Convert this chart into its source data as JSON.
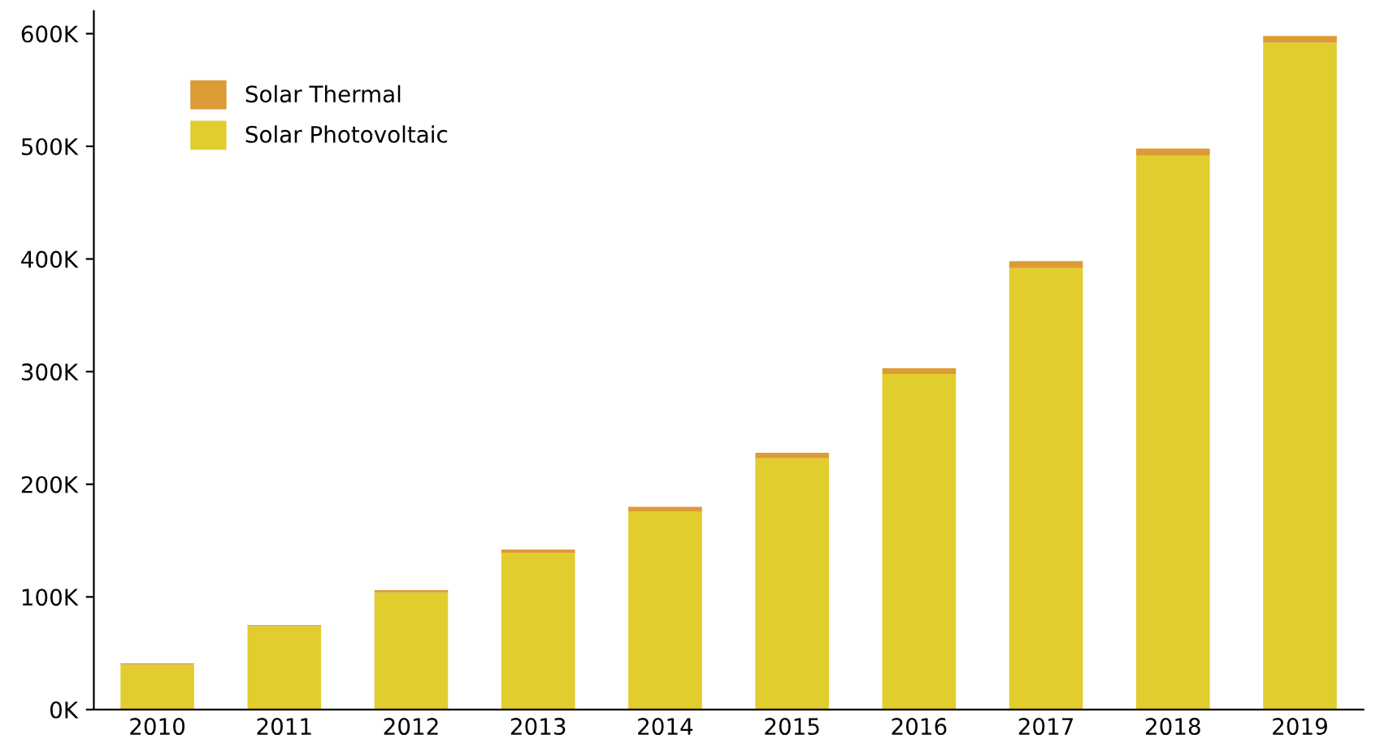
{
  "chart_data": {
    "type": "bar",
    "stacked": true,
    "categories": [
      "2010",
      "2011",
      "2012",
      "2013",
      "2014",
      "2015",
      "2016",
      "2017",
      "2018",
      "2019"
    ],
    "series": [
      {
        "name": "Solar Photovoltaic",
        "color": "#e2cd2f",
        "values": [
          40,
          74,
          104,
          139,
          176,
          223,
          298,
          392,
          492,
          592
        ]
      },
      {
        "name": "Solar Thermal",
        "color": "#dc9b35",
        "values": [
          1,
          1,
          2,
          3,
          4,
          5,
          5,
          6,
          6,
          6
        ]
      }
    ],
    "ylim": [
      0,
      620
    ],
    "yticks": [
      {
        "value": 0,
        "label": "0K"
      },
      {
        "value": 100,
        "label": "100K"
      },
      {
        "value": 200,
        "label": "200K"
      },
      {
        "value": 300,
        "label": "300K"
      },
      {
        "value": 400,
        "label": "400K"
      },
      {
        "value": 500,
        "label": "500K"
      },
      {
        "value": 600,
        "label": "600K"
      }
    ],
    "grid": false,
    "legend": "top left"
  }
}
